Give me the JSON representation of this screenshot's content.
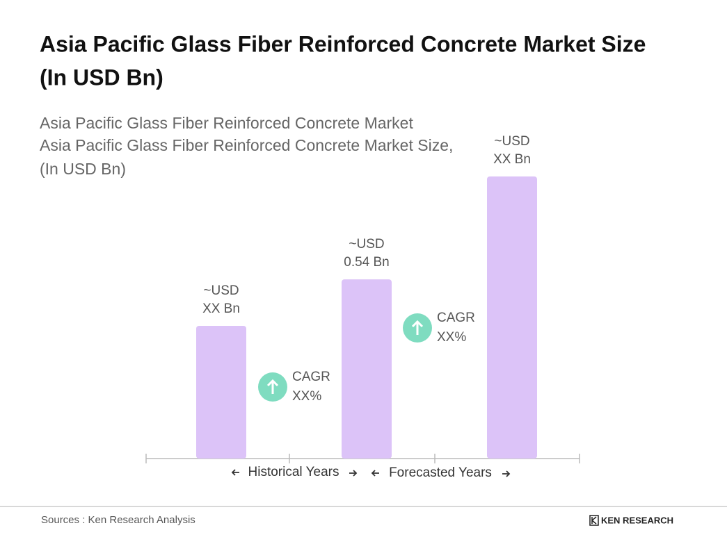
{
  "chart_data": {
    "type": "bar",
    "title": [
      "Asia Pacific Glass Fiber Reinforced Concrete Market Size",
      "(In USD Bn)"
    ],
    "subtitle": [
      "Asia Pacific Glass Fiber Reinforced Concrete Market",
      "Asia Pacific Glass Fiber Reinforced Concrete Market Size,",
      "(In USD Bn)"
    ],
    "categories": [
      null,
      null,
      null
    ],
    "values": [
      0.4,
      0.54,
      0.85
    ],
    "value_labels": [
      [
        "~USD",
        "XX Bn"
      ],
      [
        "~USD",
        "0.54 Bn"
      ],
      [
        "~USD",
        "XX Bn"
      ]
    ],
    "color": "#dcc3f8",
    "annotations": [
      [
        "CAGR",
        "XX%"
      ],
      [
        "CAGR",
        "XX%"
      ]
    ],
    "periods": [
      "Historical Years",
      "Forecasted Years"
    ],
    "source": "Sources : Ken Research Analysis",
    "brand": "KEN RESEARCH"
  }
}
